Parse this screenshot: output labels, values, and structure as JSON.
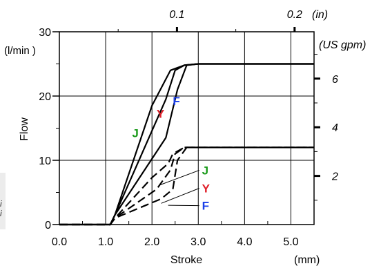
{
  "chart_data": {
    "type": "line",
    "xlabel": "Stroke",
    "xunit": "(mm)",
    "ylabel": "Flow",
    "yunit": "(l/min )",
    "xlim": [
      0,
      5.5
    ],
    "ylim": [
      0,
      30
    ],
    "grid": true,
    "x_ticks": [
      "0.0",
      "1.0",
      "2.0",
      "3.0",
      "4.0",
      "5.0"
    ],
    "y_ticks": [
      "0",
      "10",
      "20",
      "30"
    ],
    "top_axis": {
      "unit": "(in)",
      "ticks": [
        {
          "label": "0.1",
          "value": 0.1
        },
        {
          "label": "0.2",
          "value": 0.2
        }
      ]
    },
    "right_axis": {
      "unit": "(US gpm)",
      "ticks": [
        {
          "label": "2",
          "value": 2
        },
        {
          "label": "4",
          "value": 4
        },
        {
          "label": "6",
          "value": 6
        }
      ]
    },
    "series": [
      {
        "name": "J",
        "group": "upper",
        "style": "solid",
        "label_color": "#1a9a1a",
        "x": [
          0,
          1.1,
          1.2,
          2.0,
          2.4,
          2.7,
          3.0,
          4.0,
          5.5
        ],
        "y": [
          0,
          0,
          1.5,
          18.5,
          24,
          24.8,
          25,
          25,
          25
        ]
      },
      {
        "name": "Y",
        "group": "upper",
        "style": "solid",
        "label_color": "#e0202a",
        "x": [
          0,
          1.1,
          1.2,
          2.3,
          2.5,
          2.7,
          3.0,
          4.0,
          5.5
        ],
        "y": [
          0,
          0,
          1.5,
          19.5,
          24,
          24.8,
          25,
          25,
          25
        ]
      },
      {
        "name": "F",
        "group": "upper",
        "style": "solid",
        "label_color": "#1a3ee8",
        "x": [
          0,
          1.1,
          1.2,
          2.3,
          2.55,
          2.75,
          3.0,
          4.0,
          5.5
        ],
        "y": [
          0,
          0,
          1.5,
          13.5,
          21,
          24.8,
          25,
          25,
          25
        ]
      },
      {
        "name": "J",
        "group": "lower",
        "style": "dashed",
        "label_color": "#1a9a1a",
        "x": [
          0,
          1.1,
          1.2,
          2.0,
          2.35,
          2.45,
          2.7,
          3.0,
          4.0,
          5.5
        ],
        "y": [
          0,
          0,
          1,
          7.3,
          9.5,
          11,
          12,
          12,
          12,
          12
        ]
      },
      {
        "name": "Y",
        "group": "lower",
        "style": "dashed",
        "label_color": "#e0202a",
        "x": [
          0,
          1.1,
          1.2,
          2.1,
          2.4,
          2.5,
          2.7,
          3.0,
          4.0,
          5.5
        ],
        "y": [
          0,
          0,
          1,
          5.5,
          8.5,
          11,
          12,
          12,
          12,
          12
        ]
      },
      {
        "name": "F",
        "group": "lower",
        "style": "dashed",
        "label_color": "#1a3ee8",
        "x": [
          0,
          1.1,
          1.2,
          2.2,
          2.45,
          2.55,
          2.75,
          3.0,
          4.0,
          5.5
        ],
        "y": [
          0,
          0,
          1,
          4,
          5.5,
          10,
          12,
          12,
          12,
          12
        ]
      }
    ],
    "annotations": [
      {
        "text": "J",
        "color": "#1a9a1a",
        "x": 1.57,
        "y": 13.6
      },
      {
        "text": "Y",
        "color": "#e0202a",
        "x": 2.1,
        "y": 16.6
      },
      {
        "text": "F",
        "color": "#1a3ee8",
        "x": 2.45,
        "y": 18.6
      },
      {
        "text": "J",
        "color": "#1a9a1a",
        "x": 3.08,
        "y": 7.8,
        "leader_to": [
          2.15,
          6.1
        ]
      },
      {
        "text": "Y",
        "color": "#e0202a",
        "x": 3.08,
        "y": 5.0,
        "leader_to": [
          2.2,
          3.3
        ]
      },
      {
        "text": "F",
        "color": "#1a3ee8",
        "x": 3.08,
        "y": 2.3,
        "leader_to": [
          2.35,
          3.0
        ]
      }
    ]
  },
  "sidebar_fragment": [
    "i",
    "i"
  ]
}
